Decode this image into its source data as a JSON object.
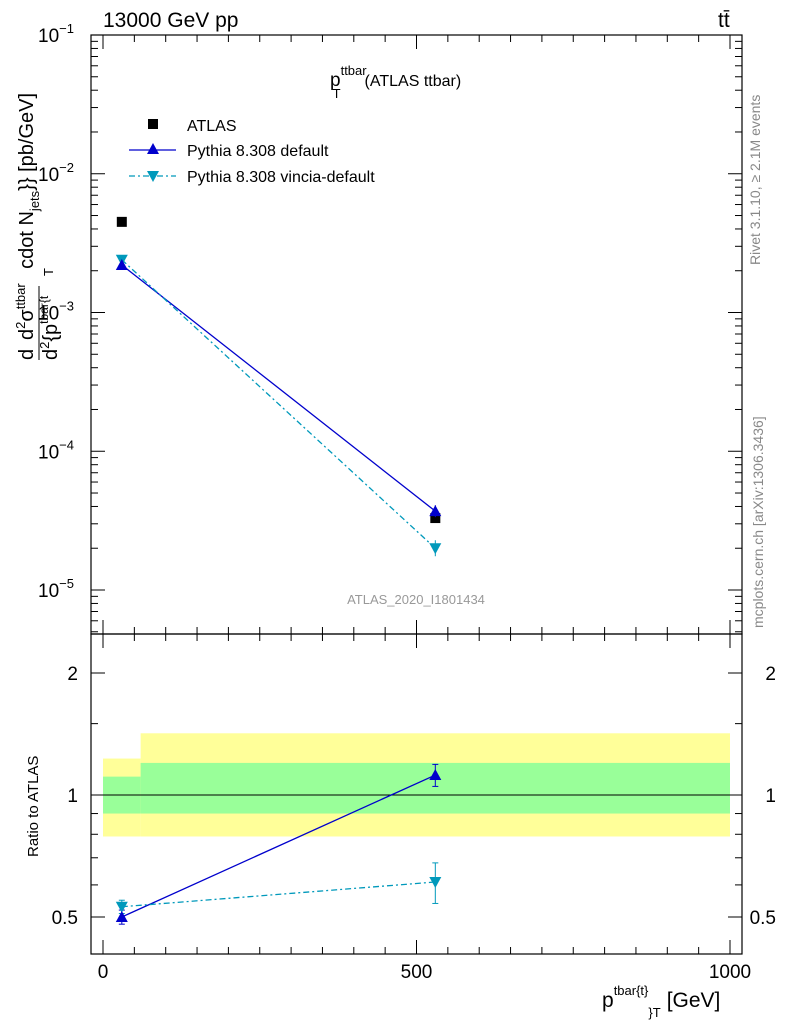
{
  "header": {
    "energy": "13000 GeV pp",
    "process": "tt̄",
    "title_main": "p",
    "title_sup": "ttbar",
    "title_sub": "T",
    "title_rest": "(ATLAS ttbar)",
    "watermark": "ATLAS_2020_I1801434",
    "side_rivet": "Rivet 3.1.10, ≥ 2.1M events",
    "side_mcplots": "mcplots.cern.ch [arXiv:1306.3436]"
  },
  "main_ylabel": {
    "part1": "d",
    "part2": "d",
    "part3": "σ",
    "part4": "ttbar",
    "part5": "2",
    "part6": "cdot N",
    "part7": "jets",
    "part8": "}} [pb/GeV]",
    "den1": "d",
    "den2": "2",
    "den3": "{p",
    "den4": "tbar{t",
    "den5": "T"
  },
  "ratio_ylabel": "Ratio to ATLAS",
  "xlabel": {
    "main": "p",
    "sup": "tbar{t}",
    "sub": "}",
    "subT": "T",
    "unit": "[GeV]"
  },
  "legend": {
    "atlas": "ATLAS",
    "pythia_default": "Pythia 8.308 default",
    "pythia_vincia": "Pythia 8.308 vincia-default"
  },
  "main_ticks": {
    "y": [
      {
        "base": "10",
        "exp": "−1"
      },
      {
        "base": "10",
        "exp": "−2"
      },
      {
        "base": "10",
        "exp": "−3"
      },
      {
        "base": "10",
        "exp": "−4"
      },
      {
        "base": "10",
        "exp": "−5"
      }
    ]
  },
  "ratio_ticks": {
    "y": [
      "2",
      "1",
      "0.5"
    ]
  },
  "x_ticks": [
    "0",
    "500",
    "1000"
  ],
  "colors": {
    "atlas": "#000000",
    "default": "#0000cc",
    "vincia": "#0099bb",
    "band_outer": "#ffff99",
    "band_inner": "#99ff99"
  },
  "chart_data": {
    "type": "scatter",
    "scale": "log-y main panel, ratio panel below",
    "xlim": [
      -30,
      1030
    ],
    "ylim_main": [
      4.5e-06,
      0.1
    ],
    "ylim_ratio": [
      0.42,
      2.5
    ],
    "x": [
      30,
      530
    ],
    "series": [
      {
        "name": "ATLAS",
        "values": [
          0.0045,
          3.3e-05
        ],
        "marker": "square"
      },
      {
        "name": "Pythia 8.308 default",
        "values": [
          0.0022,
          3.7e-05
        ],
        "ratio": [
          0.5,
          1.12
        ],
        "ratio_err": [
          0.02,
          0.07
        ],
        "marker": "triangle-up"
      },
      {
        "name": "Pythia 8.308 vincia-default",
        "values": [
          0.0024,
          2e-05
        ],
        "ratio": [
          0.53,
          0.61
        ],
        "ratio_err": [
          0.02,
          0.07
        ],
        "marker": "triangle-down"
      }
    ],
    "ratio_bands": [
      {
        "x": [
          0,
          60
        ],
        "inner": [
          0.9,
          1.11
        ],
        "outer": [
          0.79,
          1.23
        ]
      },
      {
        "x": [
          60,
          1000
        ],
        "inner": [
          0.9,
          1.2
        ],
        "outer": [
          0.79,
          1.42
        ]
      }
    ]
  }
}
